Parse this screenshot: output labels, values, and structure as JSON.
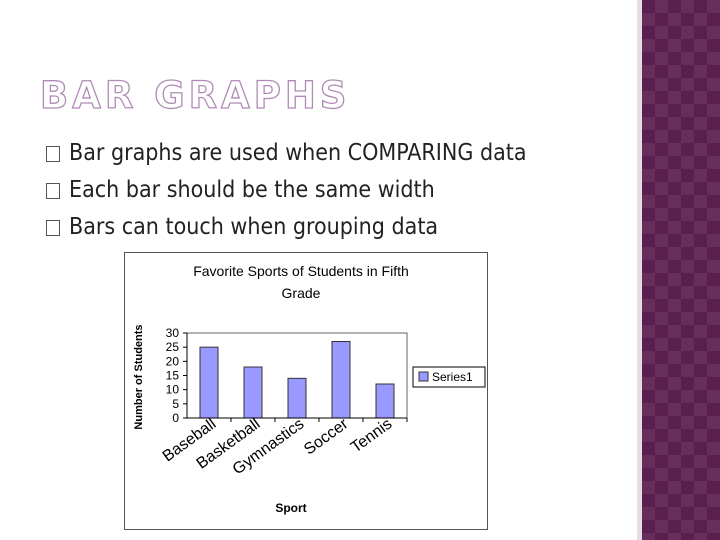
{
  "slide": {
    "title": "BAR GRAPHS",
    "bullets": [
      "Bar graphs are used when COMPARING data",
      "Each bar should be the same width",
      "Bars can touch when grouping data"
    ],
    "bullet_icon": "box-bullet-icon"
  },
  "colors": {
    "title_outline": "#b08ab6",
    "bar_fill": "#9999ff",
    "sidebar": "#5a1e4f"
  },
  "chart_data": {
    "type": "bar",
    "title_lines": [
      "Favorite Sports of Students in Fifth",
      "Grade"
    ],
    "xlabel": "Sport",
    "ylabel": "Number of Students",
    "categories": [
      "Baseball",
      "Basketball",
      "Gymnastics",
      "Soccer",
      "Tennis"
    ],
    "series": [
      {
        "name": "Series1",
        "values": [
          25,
          18,
          14,
          27,
          12
        ]
      }
    ],
    "ylim": [
      0,
      30
    ],
    "yticks": [
      "0",
      "5",
      "10",
      "15",
      "20",
      "25",
      "30"
    ],
    "grid": false,
    "legend": "right"
  }
}
